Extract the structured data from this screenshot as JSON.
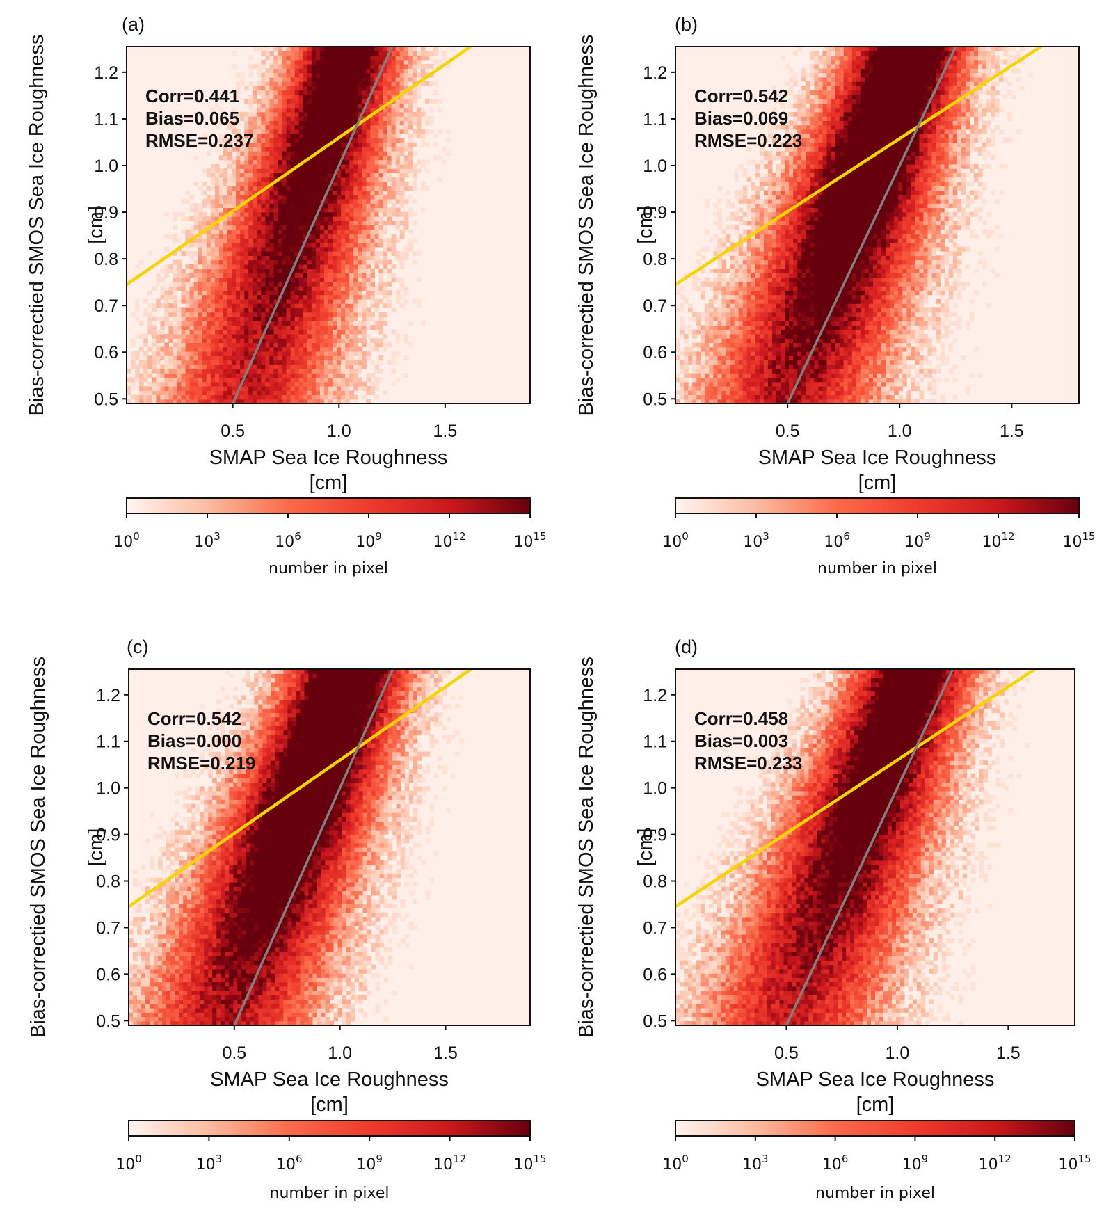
{
  "chart_data": [
    {
      "type": "heatmap",
      "panel_label": "(a)",
      "xlabel": "SMAP Sea Ice Roughness",
      "xunit": "[cm]",
      "ylabel": "Bias-correctied SMOS Sea Ice Roughness",
      "yunit": "[cm]",
      "xlim": [
        0.0,
        1.9
      ],
      "ylim": [
        0.49,
        1.255
      ],
      "xticks": [
        "0.5",
        "1.0",
        "1.5"
      ],
      "yticks": [
        "0.5",
        "0.6",
        "0.7",
        "0.8",
        "0.9",
        "1.0",
        "1.1",
        "1.2"
      ],
      "stats": [
        "Corr=0.441",
        "Bias=0.065",
        "RMSE=0.237"
      ],
      "fit_lines": [
        {
          "color": "#f5d400",
          "x": [
            0.0,
            1.62
          ],
          "y": [
            0.745,
            1.255
          ]
        },
        {
          "color": "#808080",
          "x": [
            0.5,
            1.25
          ],
          "y": [
            0.49,
            1.255
          ]
        }
      ],
      "density": {
        "center_x": [
          0.55,
          1.05
        ],
        "spread": [
          0.26,
          0.16
        ],
        "bias": 0.12
      },
      "colorbar": {
        "label": "number in pixel",
        "ticks": [
          "0",
          "3",
          "6",
          "9",
          "12",
          "15"
        ],
        "base": "10",
        "colors": [
          "#fff5f0",
          "#fcbba1",
          "#fb6a4a",
          "#ef3b2c",
          "#cb181d",
          "#67000d"
        ]
      }
    },
    {
      "type": "heatmap",
      "panel_label": "(b)",
      "xlabel": "SMAP Sea Ice Roughness",
      "xunit": "[cm]",
      "ylabel": "Bias-correctied SMOS Sea Ice Roughness",
      "yunit": "[cm]",
      "xlim": [
        0.0,
        1.8
      ],
      "ylim": [
        0.49,
        1.255
      ],
      "xticks": [
        "0.5",
        "1.0",
        "1.5"
      ],
      "yticks": [
        "0.5",
        "0.6",
        "0.7",
        "0.8",
        "0.9",
        "1.0",
        "1.1",
        "1.2"
      ],
      "stats": [
        "Corr=0.542",
        "Bias=0.069",
        "RMSE=0.223"
      ],
      "fit_lines": [
        {
          "color": "#f5d400",
          "x": [
            0.0,
            1.63
          ],
          "y": [
            0.745,
            1.255
          ]
        },
        {
          "color": "#808080",
          "x": [
            0.5,
            1.25
          ],
          "y": [
            0.49,
            1.255
          ]
        }
      ],
      "density": {
        "center_x": [
          0.5,
          1.05
        ],
        "spread": [
          0.26,
          0.17
        ],
        "bias": 0.3
      },
      "colorbar": {
        "label": "number in pixel",
        "ticks": [
          "0",
          "3",
          "6",
          "9",
          "12",
          "15"
        ],
        "base": "10",
        "colors": [
          "#fff5f0",
          "#fcbba1",
          "#fb6a4a",
          "#ef3b2c",
          "#cb181d",
          "#67000d"
        ]
      }
    },
    {
      "type": "heatmap",
      "panel_label": "(c)",
      "xlabel": "SMAP Sea Ice Roughness",
      "xunit": "[cm]",
      "ylabel": "Bias-correctied SMOS Sea Ice Roughness",
      "yunit": "[cm]",
      "xlim": [
        0.0,
        1.9
      ],
      "ylim": [
        0.49,
        1.255
      ],
      "xticks": [
        "0.5",
        "1.0",
        "1.5"
      ],
      "yticks": [
        "0.5",
        "0.6",
        "0.7",
        "0.8",
        "0.9",
        "1.0",
        "1.1",
        "1.2"
      ],
      "stats": [
        "Corr=0.542",
        "Bias=0.000",
        "RMSE=0.219"
      ],
      "fit_lines": [
        {
          "color": "#f5d400",
          "x": [
            0.0,
            1.62
          ],
          "y": [
            0.745,
            1.255
          ]
        },
        {
          "color": "#808080",
          "x": [
            0.5,
            1.25
          ],
          "y": [
            0.49,
            1.255
          ]
        }
      ],
      "density": {
        "center_x": [
          0.45,
          1.05
        ],
        "spread": [
          0.27,
          0.18
        ],
        "bias": 0.3
      },
      "colorbar": {
        "label": "number in pixel",
        "ticks": [
          "0",
          "3",
          "6",
          "9",
          "12",
          "15"
        ],
        "base": "10",
        "colors": [
          "#fff5f0",
          "#fcbba1",
          "#fb6a4a",
          "#ef3b2c",
          "#cb181d",
          "#67000d"
        ]
      }
    },
    {
      "type": "heatmap",
      "panel_label": "(d)",
      "xlabel": "SMAP Sea Ice Roughness",
      "xunit": "[cm]",
      "ylabel": "Bias-correctied SMOS Sea Ice Roughness",
      "yunit": "[cm]",
      "xlim": [
        0.0,
        1.8
      ],
      "ylim": [
        0.49,
        1.255
      ],
      "xticks": [
        "0.5",
        "1.0",
        "1.5"
      ],
      "yticks": [
        "0.5",
        "0.6",
        "0.7",
        "0.8",
        "0.9",
        "1.0",
        "1.1",
        "1.2"
      ],
      "stats": [
        "Corr=0.458",
        "Bias=0.003",
        "RMSE=0.233"
      ],
      "fit_lines": [
        {
          "color": "#f5d400",
          "x": [
            0.0,
            1.62
          ],
          "y": [
            0.745,
            1.255
          ]
        },
        {
          "color": "#808080",
          "x": [
            0.5,
            1.25
          ],
          "y": [
            0.49,
            1.255
          ]
        }
      ],
      "density": {
        "center_x": [
          0.5,
          1.08
        ],
        "spread": [
          0.27,
          0.17
        ],
        "bias": 0.15
      },
      "colorbar": {
        "label": "number in pixel",
        "ticks": [
          "0",
          "3",
          "6",
          "9",
          "12",
          "15"
        ],
        "base": "10",
        "colors": [
          "#fff5f0",
          "#fcbba1",
          "#fb6a4a",
          "#ef3b2c",
          "#cb181d",
          "#67000d"
        ]
      }
    }
  ]
}
